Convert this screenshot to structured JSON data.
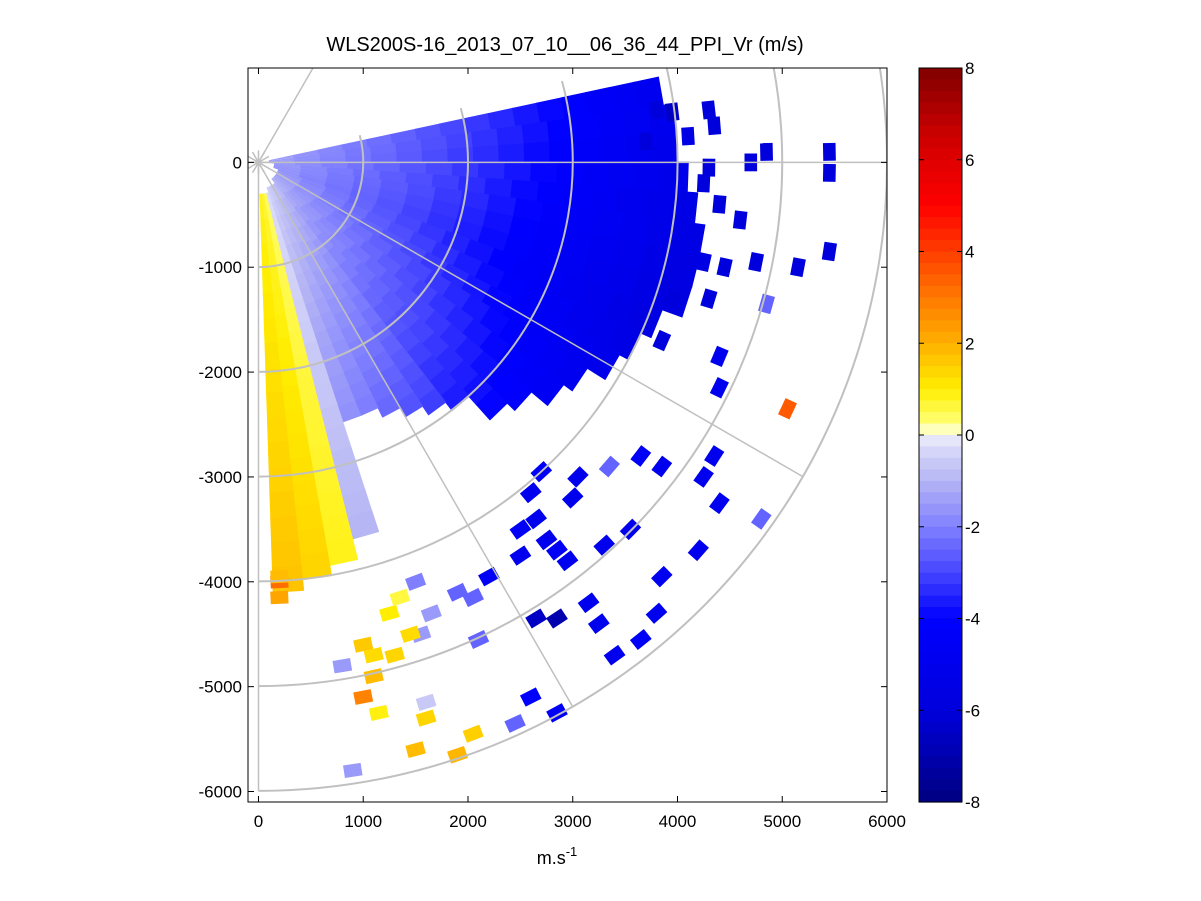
{
  "chart_data": {
    "type": "heatmap",
    "title": "WLS200S-16_2013_07_10__06_36_44_PPI_Vr (m/s)",
    "xlabel_base": "m.s",
    "xlabel_sup": "-1",
    "ylabel": "",
    "xlim": [
      -100,
      6000
    ],
    "ylim": [
      -6100,
      900
    ],
    "xticks": [
      0,
      1000,
      2000,
      3000,
      4000,
      5000,
      6000
    ],
    "yticks": [
      -6000,
      -5000,
      -4000,
      -3000,
      -2000,
      -1000,
      0
    ],
    "xtick_labels": [
      "0",
      "1000",
      "2000",
      "3000",
      "4000",
      "5000",
      "6000"
    ],
    "ytick_labels": [
      "-6000",
      "-5000",
      "-4000",
      "-3000",
      "-2000",
      "-1000",
      "0"
    ],
    "colorbar": {
      "range": [
        -8,
        8
      ],
      "ticks": [
        -8,
        -6,
        -4,
        -2,
        0,
        2,
        4,
        6,
        8
      ],
      "tick_labels": [
        "-8",
        "-6",
        "-4",
        "-2",
        "0",
        "2",
        "4",
        "6",
        "8"
      ]
    },
    "polar_grid": {
      "ring_radii": [
        1000,
        2000,
        3000,
        4000,
        5000,
        6000
      ],
      "spoke_angles_deg": [
        0,
        -30,
        -60,
        -90,
        60
      ],
      "azimuth_range_deg": [
        -90,
        15
      ],
      "grid_color": "#c0c0c0"
    },
    "bins": [
      {
        "a": 10,
        "r0": 100,
        "r1": 3900,
        "v": -4.0
      },
      {
        "a": 6,
        "r0": 100,
        "r1": 4000,
        "v": -4.1
      },
      {
        "a": 2,
        "r0": 100,
        "r1": 4000,
        "v": -4.2
      },
      {
        "a": -2,
        "r0": 100,
        "r1": 4100,
        "v": -4.3
      },
      {
        "a": -6,
        "r0": 150,
        "r1": 4200,
        "v": -4.5
      },
      {
        "a": -10,
        "r0": 150,
        "r1": 4300,
        "v": -4.6
      },
      {
        "a": -14,
        "r0": 150,
        "r1": 4300,
        "v": -4.7
      },
      {
        "a": -18,
        "r0": 150,
        "r1": 4300,
        "v": -4.8
      },
      {
        "a": -22,
        "r0": 200,
        "r1": 4100,
        "v": -4.7
      },
      {
        "a": -26,
        "r0": 200,
        "r1": 4000,
        "v": -4.5
      },
      {
        "a": -30,
        "r0": 200,
        "r1": 3900,
        "v": -4.3
      },
      {
        "a": -34,
        "r0": 200,
        "r1": 3700,
        "v": -4.0
      },
      {
        "a": -38,
        "r0": 200,
        "r1": 3600,
        "v": -3.8
      },
      {
        "a": -42,
        "r0": 200,
        "r1": 3400,
        "v": -3.5
      },
      {
        "a": -46,
        "r0": 200,
        "r1": 3300,
        "v": -3.3
      },
      {
        "a": -50,
        "r0": 200,
        "r1": 3000,
        "v": -3.0
      },
      {
        "a": -54,
        "r0": 250,
        "r1": 2900,
        "v": -2.6
      },
      {
        "a": -58,
        "r0": 250,
        "r1": 2800,
        "v": -2.3
      },
      {
        "a": -62,
        "r0": 250,
        "r1": 2700,
        "v": -2.0
      },
      {
        "a": -66,
        "r0": 250,
        "r1": 2600,
        "v": -1.7
      },
      {
        "a": -70,
        "r0": 250,
        "r1": 2600,
        "v": -1.4
      },
      {
        "a": -74,
        "r0": 300,
        "r1": 3700,
        "v": -0.8
      },
      {
        "a": -78,
        "r0": 300,
        "r1": 3900,
        "v": 0.6
      },
      {
        "a": -82,
        "r0": 300,
        "r1": 4000,
        "v": 1.0
      },
      {
        "a": -86,
        "r0": 300,
        "r1": 4100,
        "v": 1.2
      }
    ],
    "cells": [
      {
        "x": 3800,
        "y": 500,
        "v": -6.0
      },
      {
        "x": 3950,
        "y": 480,
        "v": -6.5
      },
      {
        "x": 4300,
        "y": 500,
        "v": -6.0
      },
      {
        "x": 4350,
        "y": 350,
        "v": -6.0
      },
      {
        "x": 4100,
        "y": 250,
        "v": -5.5
      },
      {
        "x": 3700,
        "y": 200,
        "v": -6.0
      },
      {
        "x": 5450,
        "y": 100,
        "v": -6.0
      },
      {
        "x": 5450,
        "y": -100,
        "v": -6.0
      },
      {
        "x": 4700,
        "y": 0,
        "v": -6.0
      },
      {
        "x": 4300,
        "y": -50,
        "v": -6.0
      },
      {
        "x": 4850,
        "y": 100,
        "v": -6.0
      },
      {
        "x": 4250,
        "y": -200,
        "v": -6.0
      },
      {
        "x": 4400,
        "y": -400,
        "v": -6.0
      },
      {
        "x": 4600,
        "y": -550,
        "v": -6.0
      },
      {
        "x": 4000,
        "y": -800,
        "v": -5.5
      },
      {
        "x": 4250,
        "y": -950,
        "v": -5.5
      },
      {
        "x": 4450,
        "y": -1000,
        "v": -6.0
      },
      {
        "x": 4750,
        "y": -950,
        "v": -6.0
      },
      {
        "x": 5450,
        "y": -850,
        "v": -6.0
      },
      {
        "x": 5150,
        "y": -1000,
        "v": -6.0
      },
      {
        "x": 4850,
        "y": -1350,
        "v": -2.5
      },
      {
        "x": 4300,
        "y": -1300,
        "v": -6.0
      },
      {
        "x": 3950,
        "y": -1300,
        "v": -6.0
      },
      {
        "x": 3850,
        "y": -1700,
        "v": -6.0
      },
      {
        "x": 4400,
        "y": -1850,
        "v": -5.0
      },
      {
        "x": 4400,
        "y": -2150,
        "v": -5.0
      },
      {
        "x": 5050,
        "y": -2350,
        "v": 3.5
      },
      {
        "x": 4350,
        "y": -2800,
        "v": -5.0
      },
      {
        "x": 4800,
        "y": -3400,
        "v": -2.5
      },
      {
        "x": 4400,
        "y": -3250,
        "v": -5.0
      },
      {
        "x": 4250,
        "y": -3000,
        "v": -5.0
      },
      {
        "x": 4200,
        "y": -3700,
        "v": -5.0
      },
      {
        "x": 3850,
        "y": -3950,
        "v": -4.8
      },
      {
        "x": 3800,
        "y": -4300,
        "v": -4.8
      },
      {
        "x": 3650,
        "y": -4550,
        "v": -4.5
      },
      {
        "x": 3400,
        "y": -4700,
        "v": -5.0
      },
      {
        "x": 3250,
        "y": -4400,
        "v": -5.0
      },
      {
        "x": 3150,
        "y": -4200,
        "v": -5.0
      },
      {
        "x": 2850,
        "y": -4350,
        "v": -7.0
      },
      {
        "x": 2650,
        "y": -4350,
        "v": -6.5
      },
      {
        "x": 2950,
        "y": -3800,
        "v": -5.0
      },
      {
        "x": 2850,
        "y": -3700,
        "v": -4.5
      },
      {
        "x": 2750,
        "y": -3600,
        "v": -5.0
      },
      {
        "x": 3300,
        "y": -3650,
        "v": -5.0
      },
      {
        "x": 3550,
        "y": -3500,
        "v": -5.0
      },
      {
        "x": 3000,
        "y": -3200,
        "v": -5.0
      },
      {
        "x": 3050,
        "y": -3000,
        "v": -5.0
      },
      {
        "x": 3650,
        "y": -2800,
        "v": -4.5
      },
      {
        "x": 3850,
        "y": -2900,
        "v": -5.0
      },
      {
        "x": 3350,
        "y": -2900,
        "v": -2.5
      },
      {
        "x": 2700,
        "y": -2950,
        "v": -4.5
      },
      {
        "x": 2600,
        "y": -3150,
        "v": -5.0
      },
      {
        "x": 2650,
        "y": -3400,
        "v": -5.0
      },
      {
        "x": 2500,
        "y": -3500,
        "v": -4.5
      },
      {
        "x": 2500,
        "y": -3750,
        "v": -5.0
      },
      {
        "x": 2600,
        "y": -5100,
        "v": -4.0
      },
      {
        "x": 2850,
        "y": -5250,
        "v": -4.5
      },
      {
        "x": 2450,
        "y": -5350,
        "v": -2.5
      },
      {
        "x": 2100,
        "y": -4550,
        "v": -2.5
      },
      {
        "x": 2200,
        "y": -3950,
        "v": -4.5
      },
      {
        "x": 2050,
        "y": -4150,
        "v": -2.5
      },
      {
        "x": 1900,
        "y": -4100,
        "v": -2.5
      },
      {
        "x": 1500,
        "y": -4000,
        "v": -2.0
      },
      {
        "x": 1650,
        "y": -4300,
        "v": -1.5
      },
      {
        "x": 1550,
        "y": -4500,
        "v": -1.5
      },
      {
        "x": 1250,
        "y": -4300,
        "v": 1.0
      },
      {
        "x": 1350,
        "y": -4150,
        "v": 0.6
      },
      {
        "x": 1450,
        "y": -4500,
        "v": 1.3
      },
      {
        "x": 1300,
        "y": -4700,
        "v": 1.4
      },
      {
        "x": 1100,
        "y": -4700,
        "v": 1.3
      },
      {
        "x": 1000,
        "y": -4600,
        "v": 1.6
      },
      {
        "x": 1100,
        "y": -4900,
        "v": 1.8
      },
      {
        "x": 800,
        "y": -4800,
        "v": -1.5
      },
      {
        "x": 1000,
        "y": -5100,
        "v": 2.8
      },
      {
        "x": 1150,
        "y": -5250,
        "v": 0.9
      },
      {
        "x": 1600,
        "y": -5150,
        "v": -0.6
      },
      {
        "x": 1600,
        "y": -5300,
        "v": 1.4
      },
      {
        "x": 1500,
        "y": -5600,
        "v": 1.8
      },
      {
        "x": 1900,
        "y": -5650,
        "v": 1.9
      },
      {
        "x": 2050,
        "y": -5450,
        "v": 1.5
      },
      {
        "x": 900,
        "y": -5800,
        "v": -1.5
      },
      {
        "x": 200,
        "y": -4000,
        "v": 3.2
      },
      {
        "x": 200,
        "y": -4150,
        "v": 2.2
      },
      {
        "x": 200,
        "y": -3950,
        "v": 1.8
      }
    ]
  }
}
